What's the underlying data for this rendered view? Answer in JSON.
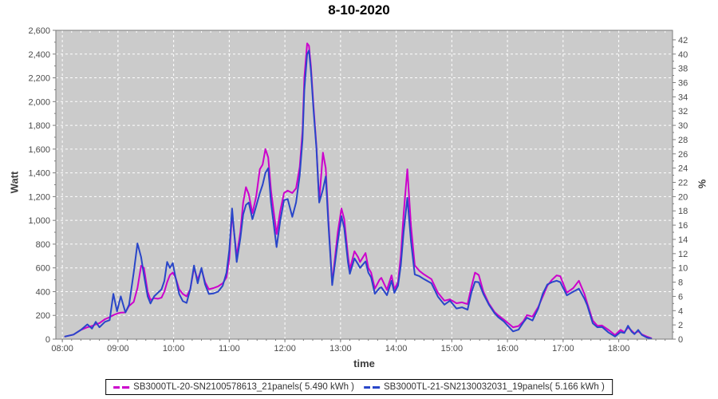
{
  "title": "8-10-2020",
  "chart_data": {
    "type": "line",
    "title": "8-10-2020",
    "xlabel": "time",
    "ylabel_left": "Watt",
    "ylabel_right": "%",
    "grid": true,
    "legend_position": "bottom",
    "plot_bg": "#cbcbcb",
    "grid_color": "#ffffff",
    "axis_color": "#7d7d7d",
    "tick_text_color": "#4a4a4a",
    "x_domain_minutes": [
      473,
      1138
    ],
    "y_domain_watt": [
      0,
      2600
    ],
    "right_axis_watt_per_unit": 60,
    "x_ticks": [
      {
        "minute": 480,
        "label": "08:00"
      },
      {
        "minute": 540,
        "label": "09:00"
      },
      {
        "minute": 600,
        "label": "10:00"
      },
      {
        "minute": 660,
        "label": "11:00"
      },
      {
        "minute": 720,
        "label": "12:00"
      },
      {
        "minute": 780,
        "label": "13:00"
      },
      {
        "minute": 840,
        "label": "14:00"
      },
      {
        "minute": 900,
        "label": "15:00"
      },
      {
        "minute": 960,
        "label": "16:00"
      },
      {
        "minute": 1020,
        "label": "17:00"
      },
      {
        "minute": 1080,
        "label": "18:00"
      }
    ],
    "y_left_ticks": [
      0,
      200,
      400,
      600,
      800,
      1000,
      1200,
      1400,
      1600,
      1800,
      2000,
      2200,
      2400,
      2600
    ],
    "y_right_ticks": [
      0,
      2,
      4,
      6,
      8,
      10,
      12,
      14,
      16,
      18,
      20,
      22,
      24,
      26,
      28,
      30,
      32,
      34,
      36,
      38,
      40,
      42
    ],
    "x_minutes": [
      483,
      492,
      500,
      507,
      512,
      516,
      520,
      526,
      531,
      535,
      539,
      543,
      548,
      552,
      557,
      561,
      565,
      568,
      572,
      575,
      579,
      583,
      587,
      590,
      593,
      596,
      599,
      602,
      606,
      610,
      614,
      618,
      622,
      626,
      630,
      634,
      638,
      643,
      648,
      653,
      657,
      660,
      663,
      668,
      672,
      675,
      678,
      681,
      685,
      689,
      693,
      696,
      699,
      702,
      705,
      711,
      715,
      719,
      723,
      728,
      732,
      736,
      739,
      741,
      744,
      746,
      748,
      751,
      754,
      757,
      761,
      764,
      767,
      771,
      777,
      781,
      784,
      788,
      790,
      795,
      799,
      801,
      807,
      810,
      813,
      817,
      822,
      824,
      830,
      835,
      838,
      842,
      845,
      848,
      852,
      856,
      860,
      865,
      870,
      878,
      885,
      892,
      898,
      905,
      911,
      917,
      921,
      925,
      929,
      934,
      940,
      946,
      950,
      956,
      966,
      972,
      977,
      981,
      987,
      993,
      998,
      1003,
      1008,
      1013,
      1017,
      1024,
      1031,
      1037,
      1043,
      1046,
      1052,
      1057,
      1062,
      1069,
      1076,
      1082,
      1086,
      1090,
      1094,
      1097,
      1101,
      1105,
      1110,
      1115
    ],
    "series": [
      {
        "name": "SB3000TL-20-SN2100578613_21panels( 5.490 kWh )",
        "color": "#cc00cc",
        "energy_kwh": "5.490",
        "values": [
          22,
          38,
          78,
          100,
          111,
          124,
          135,
          168,
          185,
          202,
          215,
          224,
          225,
          280,
          313,
          430,
          618,
          600,
          400,
          330,
          345,
          340,
          350,
          400,
          480,
          540,
          560,
          520,
          420,
          380,
          360,
          420,
          600,
          500,
          590,
          480,
          420,
          430,
          445,
          470,
          520,
          680,
          1060,
          700,
          900,
          1150,
          1280,
          1220,
          1060,
          1200,
          1430,
          1470,
          1600,
          1530,
          1250,
          885,
          1080,
          1230,
          1250,
          1230,
          1270,
          1450,
          1750,
          2200,
          2490,
          2470,
          2300,
          1950,
          1630,
          1160,
          1570,
          1440,
          1000,
          470,
          900,
          1100,
          1010,
          700,
          585,
          740,
          690,
          650,
          725,
          600,
          560,
          425,
          500,
          516,
          415,
          537,
          420,
          480,
          700,
          1050,
          1430,
          950,
          620,
          575,
          545,
          505,
          390,
          324,
          335,
          302,
          310,
          295,
          437,
          560,
          540,
          400,
          300,
          230,
          200,
          165,
          100,
          110,
          150,
          202,
          190,
          269,
          358,
          450,
          500,
          537,
          530,
          392,
          430,
          492,
          380,
          302,
          157,
          112,
          115,
          78,
          34,
          78,
          58,
          100,
          70,
          48,
          67,
          40,
          22,
          8
        ]
      },
      {
        "name": "SB3000TL-21-SN2130032031_19panels( 5.166 kWh )",
        "color": "#2946c9",
        "energy_kwh": "5.166",
        "values": [
          22,
          38,
          78,
          124,
          89,
          146,
          100,
          146,
          160,
          381,
          235,
          360,
          225,
          290,
          560,
          806,
          690,
          540,
          360,
          300,
          360,
          390,
          420,
          490,
          650,
          600,
          640,
          520,
          380,
          320,
          305,
          420,
          620,
          470,
          600,
          460,
          380,
          385,
          400,
          450,
          560,
          750,
          1100,
          650,
          850,
          1050,
          1130,
          1150,
          1010,
          1120,
          1230,
          1300,
          1400,
          1440,
          1150,
          775,
          1000,
          1170,
          1180,
          1030,
          1150,
          1380,
          1680,
          2100,
          2400,
          2430,
          2260,
          1920,
          1610,
          1150,
          1260,
          1370,
          960,
          455,
          820,
          1035,
          935,
          645,
          550,
          680,
          630,
          600,
          655,
          560,
          520,
          382,
          430,
          437,
          370,
          492,
          390,
          450,
          620,
          900,
          1190,
          820,
          545,
          530,
          505,
          470,
          358,
          290,
          324,
          258,
          268,
          248,
          390,
          483,
          480,
          380,
          290,
          220,
          185,
          150,
          65,
          80,
          140,
          180,
          157,
          255,
          381,
          460,
          480,
          492,
          480,
          369,
          400,
          425,
          340,
          285,
          134,
          100,
          102,
          56,
          22,
          60,
          52,
          113,
          62,
          42,
          78,
          35,
          14,
          5
        ]
      }
    ]
  }
}
